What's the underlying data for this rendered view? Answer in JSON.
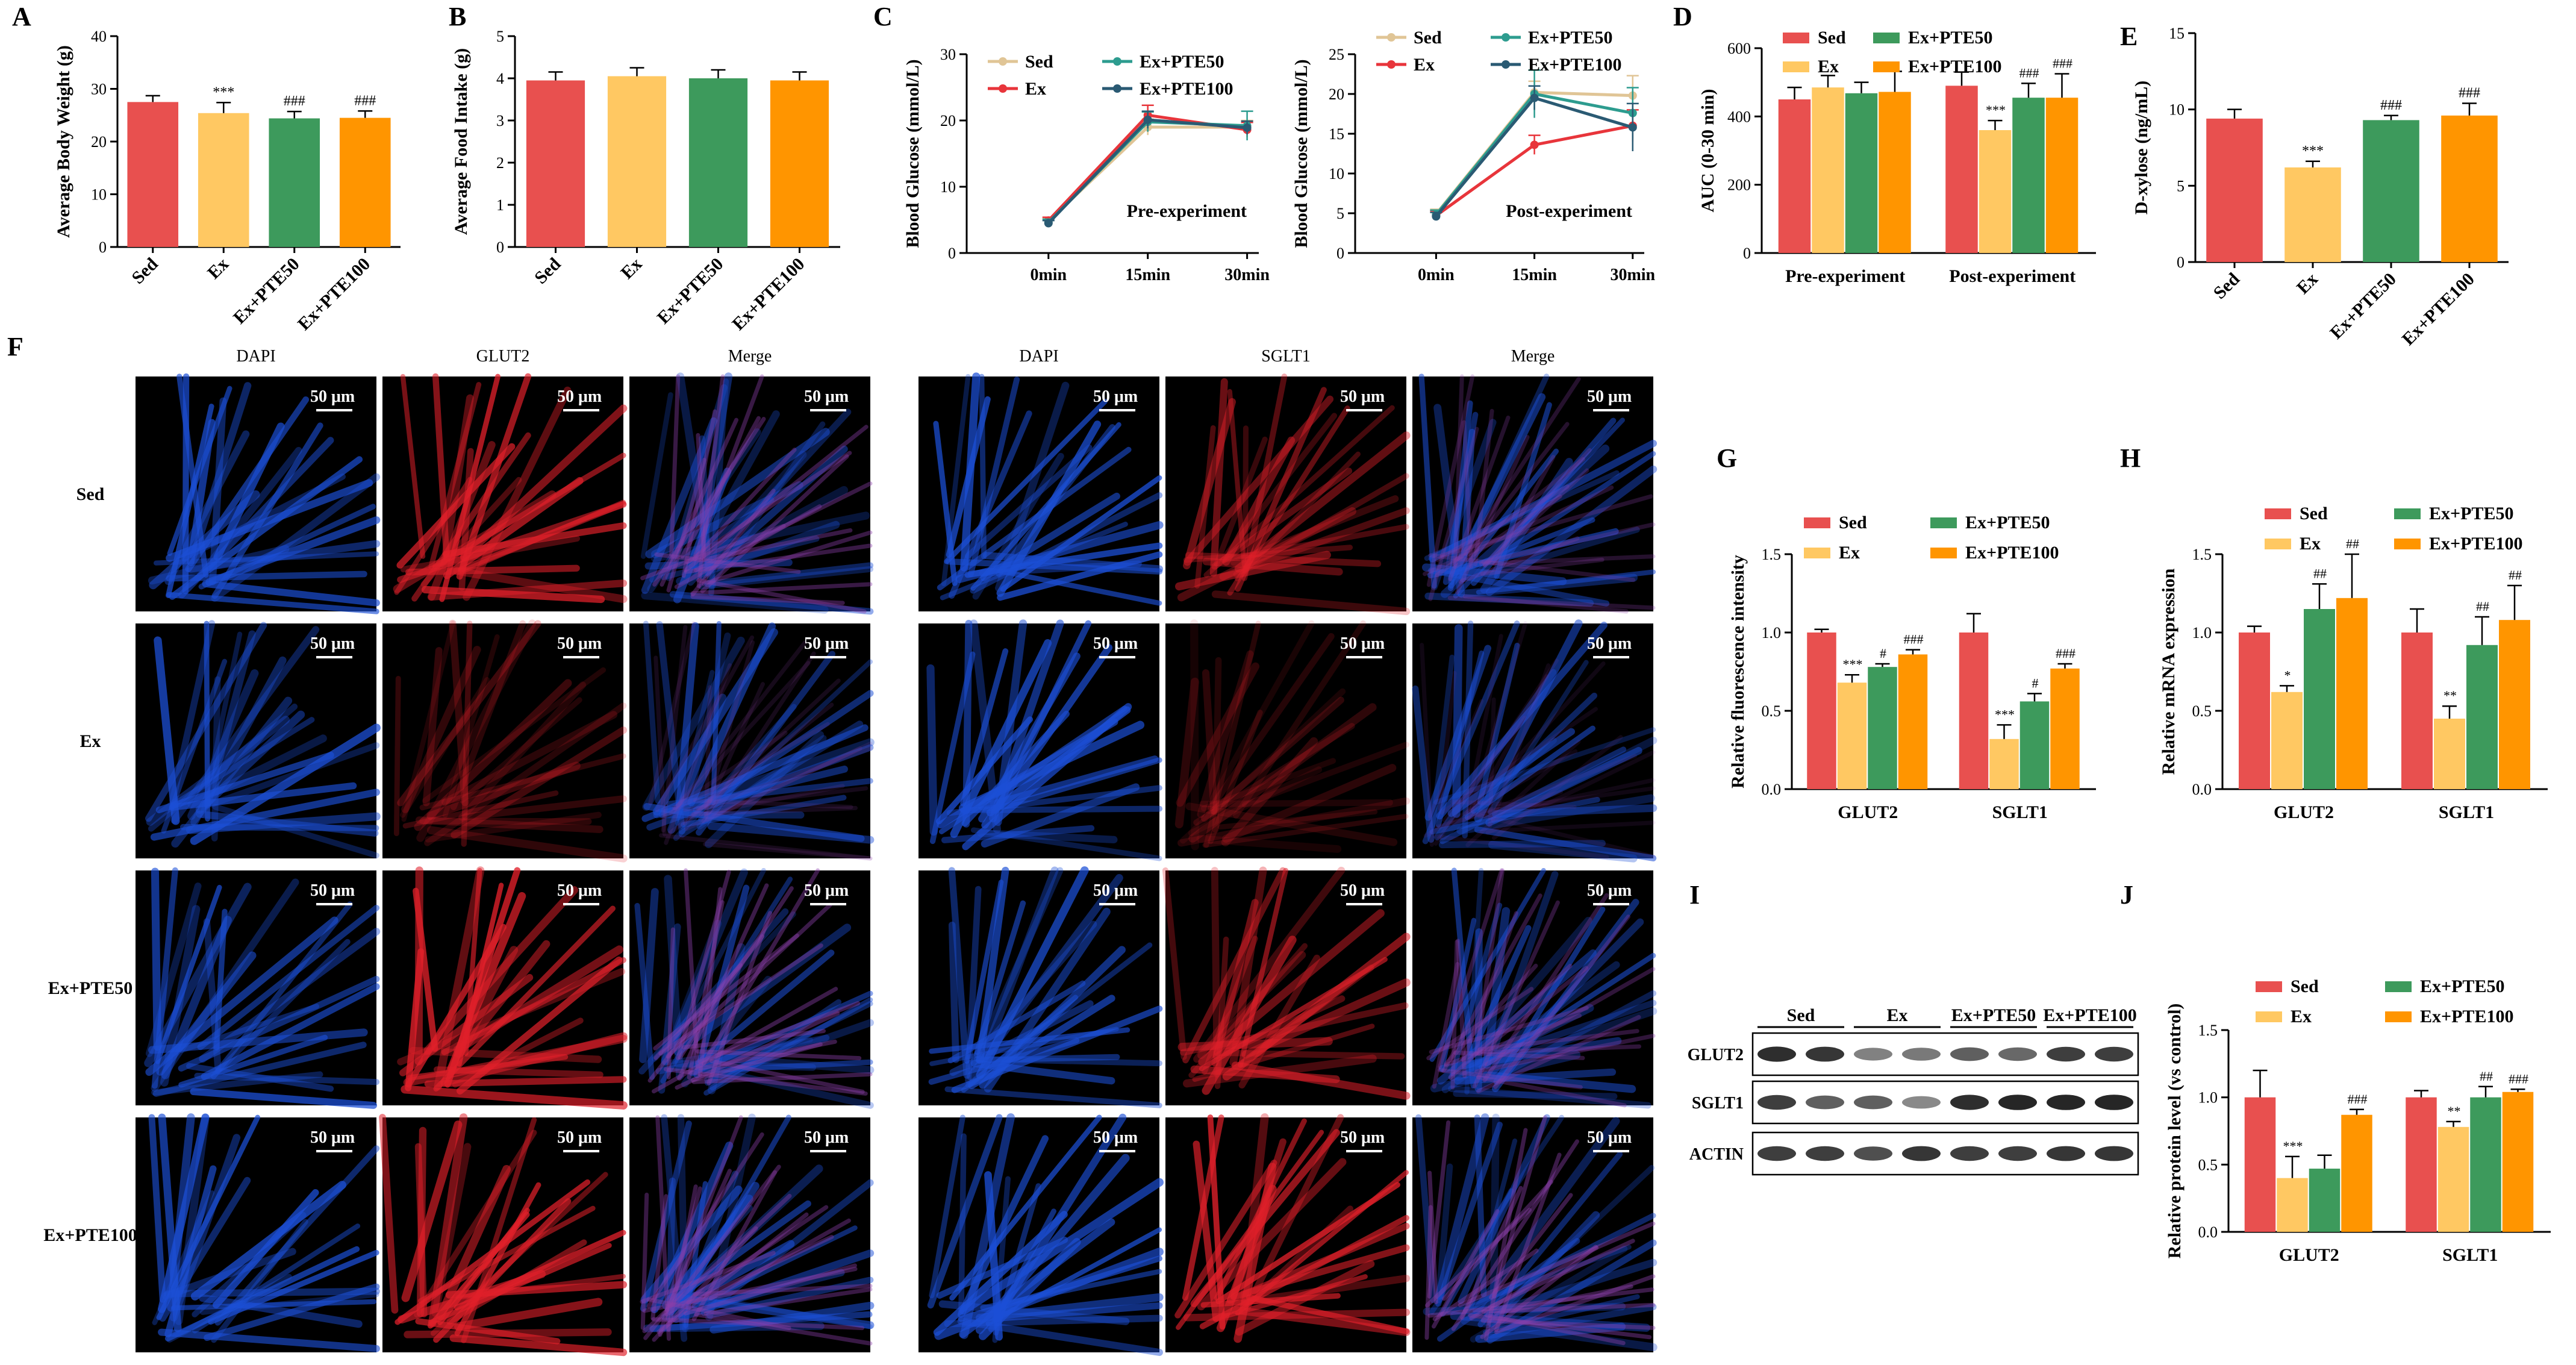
{
  "colors": {
    "Sed": "#e8504f",
    "Ex": "#ffc862",
    "Ex+PTE50": "#3d9a5c",
    "Ex+PTE100": "#ff9500",
    "line_sed": "#e0c596",
    "line_ex": "#e8353b",
    "line_pte50": "#2d9c8f",
    "line_pte100": "#2a5a73",
    "dapi": "#1c4fd6",
    "red": "#e0202a",
    "merge": "#8a3fa8"
  },
  "panel_letters": {
    "A": "A",
    "B": "B",
    "C": "C",
    "D": "D",
    "E": "E",
    "F": "F",
    "G": "G",
    "H": "H",
    "I": "I",
    "J": "J"
  },
  "chart_data": [
    {
      "id": "A",
      "type": "bar",
      "title": "",
      "ylabel": "Average Body Weight (g)",
      "categories": [
        "Sed",
        "Ex",
        "Ex+PTE50",
        "Ex+PTE100"
      ],
      "values": [
        27.5,
        25.4,
        24.4,
        24.5
      ],
      "errors": [
        1.2,
        2.0,
        1.3,
        1.3
      ],
      "annotations": [
        "",
        "***",
        "###",
        "###"
      ],
      "ylim": [
        0,
        40
      ],
      "yticks": [
        0,
        10,
        20,
        30,
        40
      ]
    },
    {
      "id": "B",
      "type": "bar",
      "ylabel": "Average Food Intake (g)",
      "categories": [
        "Sed",
        "Ex",
        "Ex+PTE50",
        "Ex+PTE100"
      ],
      "values": [
        3.95,
        4.05,
        4.0,
        3.95
      ],
      "errors": [
        0.2,
        0.2,
        0.2,
        0.2
      ],
      "annotations": [
        "",
        "",
        "",
        ""
      ],
      "ylim": [
        0,
        5
      ],
      "yticks": [
        0,
        1,
        2,
        3,
        4,
        5
      ]
    },
    {
      "id": "C1",
      "type": "line",
      "ylabel": "Blood Glucose (mmol/L)",
      "x": [
        "0min",
        "15min",
        "30min"
      ],
      "annotation": "Pre-experiment",
      "series": [
        {
          "name": "Sed",
          "values": [
            4.8,
            19.0,
            19.0
          ],
          "errors": [
            0.5,
            1.2,
            1.0
          ]
        },
        {
          "name": "Ex",
          "values": [
            4.9,
            20.8,
            18.6
          ],
          "errors": [
            0.5,
            1.5,
            1.1
          ]
        },
        {
          "name": "Ex+PTE50",
          "values": [
            4.6,
            19.8,
            19.2
          ],
          "errors": [
            0.5,
            1.5,
            2.2
          ]
        },
        {
          "name": "Ex+PTE100",
          "values": [
            4.5,
            20.1,
            18.9
          ],
          "errors": [
            0.4,
            1.3,
            1.0
          ]
        }
      ],
      "ylim": [
        0,
        30
      ],
      "yticks": [
        0,
        10,
        20,
        30
      ]
    },
    {
      "id": "C2",
      "type": "line",
      "ylabel": "Blood Glucose (mmol/L)",
      "x": [
        "0min",
        "15min",
        "30min"
      ],
      "annotation": "Post-experiment",
      "series": [
        {
          "name": "Sed",
          "values": [
            4.9,
            20.2,
            19.8
          ],
          "errors": [
            0.6,
            1.4,
            2.5
          ]
        },
        {
          "name": "Ex",
          "values": [
            4.7,
            13.6,
            16.0
          ],
          "errors": [
            0.6,
            1.2,
            2.0
          ]
        },
        {
          "name": "Ex+PTE50",
          "values": [
            4.8,
            20.0,
            17.6
          ],
          "errors": [
            0.6,
            3.0,
            3.2
          ]
        },
        {
          "name": "Ex+PTE100",
          "values": [
            4.6,
            19.5,
            15.8
          ],
          "errors": [
            0.5,
            1.5,
            3.0
          ]
        }
      ],
      "ylim": [
        0,
        25
      ],
      "yticks": [
        0,
        5,
        10,
        15,
        20,
        25
      ]
    },
    {
      "id": "D",
      "type": "bar",
      "ylabel": "AUC (0-30 min)",
      "groups": [
        "Pre-experiment",
        "Post-experiment"
      ],
      "series": [
        {
          "name": "Sed",
          "values": [
            450,
            490
          ],
          "errors": [
            35,
            40
          ]
        },
        {
          "name": "Ex",
          "values": [
            485,
            360
          ],
          "errors": [
            35,
            28
          ]
        },
        {
          "name": "Ex+PTE50",
          "values": [
            468,
            455
          ],
          "errors": [
            32,
            42
          ]
        },
        {
          "name": "Ex+PTE100",
          "values": [
            472,
            455
          ],
          "errors": [
            60,
            70
          ]
        }
      ],
      "annotations": [
        [
          "",
          "",
          "",
          ""
        ],
        [
          "",
          "***",
          "###",
          "###"
        ]
      ],
      "ylim": [
        0,
        600
      ],
      "yticks": [
        0,
        200,
        400,
        600
      ]
    },
    {
      "id": "E",
      "type": "bar",
      "ylabel": "D-xylose (ng/mL)",
      "categories": [
        "Sed",
        "Ex",
        "Ex+PTE50",
        "Ex+PTE100"
      ],
      "values": [
        9.4,
        6.2,
        9.3,
        9.6
      ],
      "errors": [
        0.6,
        0.4,
        0.3,
        0.8
      ],
      "annotations": [
        "",
        "***",
        "###",
        "###"
      ],
      "ylim": [
        0,
        15
      ],
      "yticks": [
        0,
        5,
        10,
        15
      ]
    },
    {
      "id": "G",
      "type": "bar",
      "ylabel": "Relative fluorescence intensity",
      "groups": [
        "GLUT2",
        "SGLT1"
      ],
      "series": [
        {
          "name": "Sed",
          "values": [
            1.0,
            1.0
          ],
          "errors": [
            0.02,
            0.12
          ]
        },
        {
          "name": "Ex",
          "values": [
            0.68,
            0.32
          ],
          "errors": [
            0.05,
            0.09
          ]
        },
        {
          "name": "Ex+PTE50",
          "values": [
            0.78,
            0.56
          ],
          "errors": [
            0.02,
            0.05
          ]
        },
        {
          "name": "Ex+PTE100",
          "values": [
            0.86,
            0.77
          ],
          "errors": [
            0.03,
            0.03
          ]
        }
      ],
      "annotations": [
        [
          "",
          "***",
          "#",
          "###"
        ],
        [
          "",
          "***",
          "#",
          "###"
        ]
      ],
      "ylim": [
        0,
        1.5
      ],
      "yticks": [
        "0.0",
        "0.5",
        "1.0",
        "1.5"
      ]
    },
    {
      "id": "H",
      "type": "bar",
      "ylabel": "Relative mRNA expression",
      "groups": [
        "GLUT2",
        "SGLT1"
      ],
      "series": [
        {
          "name": "Sed",
          "values": [
            1.0,
            1.0
          ],
          "errors": [
            0.04,
            0.15
          ]
        },
        {
          "name": "Ex",
          "values": [
            0.62,
            0.45
          ],
          "errors": [
            0.04,
            0.08
          ]
        },
        {
          "name": "Ex+PTE50",
          "values": [
            1.15,
            0.92
          ],
          "errors": [
            0.16,
            0.18
          ]
        },
        {
          "name": "Ex+PTE100",
          "values": [
            1.22,
            1.08
          ],
          "errors": [
            0.28,
            0.22
          ]
        }
      ],
      "annotations": [
        [
          "",
          "*",
          "##",
          "##"
        ],
        [
          "",
          "**",
          "##",
          "##"
        ]
      ],
      "ylim": [
        0,
        1.5
      ],
      "yticks": [
        "0.0",
        "0.5",
        "1.0",
        "1.5"
      ]
    },
    {
      "id": "J",
      "type": "bar",
      "ylabel": "Relative protein level (vs control)",
      "groups": [
        "GLUT2",
        "SGLT1"
      ],
      "series": [
        {
          "name": "Sed",
          "values": [
            1.0,
            1.0
          ],
          "errors": [
            0.2,
            0.05
          ]
        },
        {
          "name": "Ex",
          "values": [
            0.4,
            0.78
          ],
          "errors": [
            0.16,
            0.04
          ]
        },
        {
          "name": "Ex+PTE50",
          "values": [
            0.47,
            1.0
          ],
          "errors": [
            0.1,
            0.08
          ]
        },
        {
          "name": "Ex+PTE100",
          "values": [
            0.87,
            1.04
          ],
          "errors": [
            0.04,
            0.02
          ]
        }
      ],
      "annotations": [
        [
          "",
          "***",
          "",
          "###"
        ],
        [
          "",
          "**",
          "##",
          "###"
        ]
      ],
      "ylim": [
        0,
        1.5
      ],
      "yticks": [
        "0.0",
        "0.5",
        "1.0",
        "1.5"
      ]
    }
  ],
  "legend_names": [
    "Sed",
    "Ex",
    "Ex+PTE50",
    "Ex+PTE100"
  ],
  "microscopy": {
    "rows": [
      "Sed",
      "Ex",
      "Ex+PTE50",
      "Ex+PTE100"
    ],
    "left_cols": [
      "DAPI",
      "GLUT2",
      "Merge"
    ],
    "right_cols": [
      "DAPI",
      "SGLT1",
      "Merge"
    ],
    "scale_label": "50 μm",
    "intensity": {
      "GLUT2": [
        0.9,
        0.35,
        0.95,
        0.9
      ],
      "SGLT1": [
        0.6,
        0.25,
        0.75,
        0.95
      ]
    }
  },
  "western": {
    "groups": [
      "Sed",
      "Ex",
      "Ex+PTE50",
      "Ex+PTE100"
    ],
    "rows": [
      "GLUT2",
      "SGLT1",
      "ACTIN"
    ],
    "intensity": {
      "GLUT2": [
        0.9,
        0.85,
        0.4,
        0.45,
        0.6,
        0.55,
        0.8,
        0.8
      ],
      "SGLT1": [
        0.8,
        0.6,
        0.6,
        0.35,
        0.9,
        0.95,
        0.95,
        0.95
      ],
      "ACTIN": [
        0.8,
        0.8,
        0.7,
        0.85,
        0.8,
        0.8,
        0.85,
        0.85
      ]
    }
  }
}
